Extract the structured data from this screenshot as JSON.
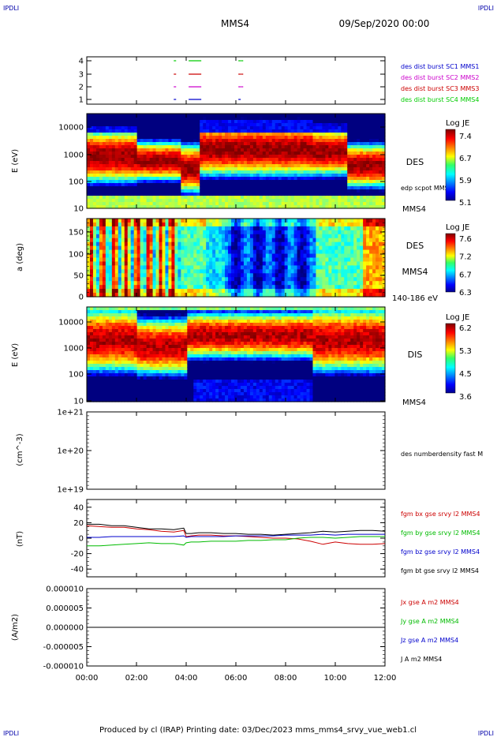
{
  "header": {
    "corner_left_top": "IPDLI",
    "corner_right_top": "IPDLI",
    "corner_left_bottom": "IPDLI",
    "corner_right_bottom": "IPDLI",
    "spacecraft": "MMS4",
    "date": "09/Sep/2020 00:00"
  },
  "footer": {
    "text": "Produced by cl (IRAP)   Printing date: 03/Dec/2023   mms_mms4_srvy_vue_web1.cl"
  },
  "chart_data": [
    {
      "type": "scatter",
      "panel": "burst",
      "ylabel": "",
      "yticks": [
        "4",
        "3",
        "2",
        "1"
      ],
      "series": [
        {
          "name": "des dist burst SC1 MMS1",
          "color": "#0000cc",
          "level": 1,
          "x": [
            3.5,
            4.1,
            6.1
          ]
        },
        {
          "name": "des dist burst SC2 MMS2",
          "color": "#cc00cc",
          "level": 2,
          "x": [
            3.5,
            4.1,
            6.1,
            6.2
          ]
        },
        {
          "name": "des dist burst SC3 MMS3",
          "color": "#cc0000",
          "level": 3,
          "x": [
            3.5,
            4.1,
            6.1,
            6.2
          ]
        },
        {
          "name": "des dist burst SC4 MMS4",
          "color": "#00cc00",
          "level": 4,
          "x": [
            3.5,
            4.1,
            6.1,
            6.2
          ]
        }
      ]
    },
    {
      "type": "heatmap",
      "panel": "des-energy",
      "ylabel": "E (eV)",
      "yticks": [
        "10000",
        "1000",
        "100",
        "10"
      ],
      "right_label": "DES",
      "right_sublabel": "edp scpot MMS4",
      "right_bottom": "MMS4",
      "colorbar": {
        "title": "Log JE",
        "ticks": [
          "7.4",
          "6.7",
          "5.9",
          "5.1"
        ]
      }
    },
    {
      "type": "heatmap",
      "panel": "des-pitch",
      "ylabel": "a (deg)",
      "yticks": [
        "150",
        "100",
        "50",
        "0"
      ],
      "right_label": "DES",
      "right_sublabel": "MMS4",
      "right_bottom": "140-186 eV",
      "colorbar": {
        "title": "Log JE",
        "ticks": [
          "7.6",
          "7.2",
          "6.7",
          "6.3"
        ]
      }
    },
    {
      "type": "heatmap",
      "panel": "dis-energy",
      "ylabel": "E (eV)",
      "yticks": [
        "10000",
        "1000",
        "100",
        "10"
      ],
      "right_label": "DIS",
      "right_bottom": "MMS4",
      "colorbar": {
        "title": "Log JE",
        "ticks": [
          "6.2",
          "5.3",
          "4.5",
          "3.6"
        ]
      }
    },
    {
      "type": "line",
      "panel": "density",
      "ylabel": "(cm^-3)",
      "yticks": [
        "1e+21",
        "1e+20",
        "1e+19"
      ],
      "right_label": "des numberdensity fast M"
    },
    {
      "type": "line",
      "panel": "fgm",
      "ylabel": "(nT)",
      "yticks": [
        "40",
        "20",
        "0",
        "-20",
        "-40"
      ],
      "ylim": [
        -50,
        50
      ],
      "x": [
        0,
        0.5,
        1,
        1.5,
        2,
        2.5,
        3,
        3.5,
        3.9,
        4,
        4.2,
        4.5,
        5,
        5.5,
        6,
        6.5,
        7,
        7.5,
        8,
        8.5,
        9,
        9.5,
        10,
        10.5,
        11,
        11.5,
        12
      ],
      "series": [
        {
          "name": "fgm bx gse srvy l2 MMS4",
          "color": "#cc0000",
          "values": [
            16,
            15,
            14,
            14,
            12,
            11,
            9,
            8,
            10,
            2,
            3,
            4,
            4,
            3,
            3,
            2,
            1,
            0,
            0,
            -1,
            -4,
            -8,
            -5,
            -7,
            -8,
            -8,
            -7
          ]
        },
        {
          "name": "fgm by gse srvy l2 MMS4",
          "color": "#00bb00",
          "values": [
            -10,
            -10,
            -9,
            -8,
            -7,
            -6,
            -7,
            -7,
            -9,
            -6,
            -5,
            -5,
            -4,
            -4,
            -4,
            -3,
            -3,
            -2,
            -2,
            0,
            1,
            1,
            0,
            1,
            2,
            2,
            2
          ]
        },
        {
          "name": "fgm bz gse srvy l2 MMS4",
          "color": "#0000cc",
          "values": [
            1,
            1,
            2,
            2,
            2,
            2,
            2,
            2,
            3,
            1,
            2,
            2,
            2,
            2,
            3,
            3,
            3,
            3,
            4,
            4,
            4,
            5,
            4,
            5,
            5,
            5,
            5
          ]
        },
        {
          "name": "fgm bt gse srvy l2 MMS4",
          "color": "#000000",
          "values": [
            18,
            18,
            16,
            16,
            14,
            12,
            12,
            11,
            13,
            6,
            6,
            7,
            7,
            6,
            6,
            5,
            5,
            4,
            5,
            6,
            7,
            9,
            8,
            9,
            10,
            10,
            9
          ]
        }
      ]
    },
    {
      "type": "line",
      "panel": "current",
      "ylabel": "(A/m2)",
      "yticks": [
        "0.000010",
        "0.000005",
        "0.000000",
        "-0.000005",
        "-0.000010"
      ],
      "ylim": [
        -1e-05,
        1e-05
      ],
      "series": [
        {
          "name": "Jx gse A m2 MMS4",
          "color": "#cc0000"
        },
        {
          "name": "Jy gse A m2 MMS4",
          "color": "#00bb00"
        },
        {
          "name": "Jz gse A m2 MMS4",
          "color": "#0000cc"
        },
        {
          "name": "J A m2 MMS4",
          "color": "#000000"
        }
      ]
    }
  ],
  "xaxis": {
    "ticks": [
      "00:00",
      "02:00",
      "04:00",
      "06:00",
      "08:00",
      "10:00",
      "12:00"
    ],
    "range": [
      0,
      12
    ]
  }
}
